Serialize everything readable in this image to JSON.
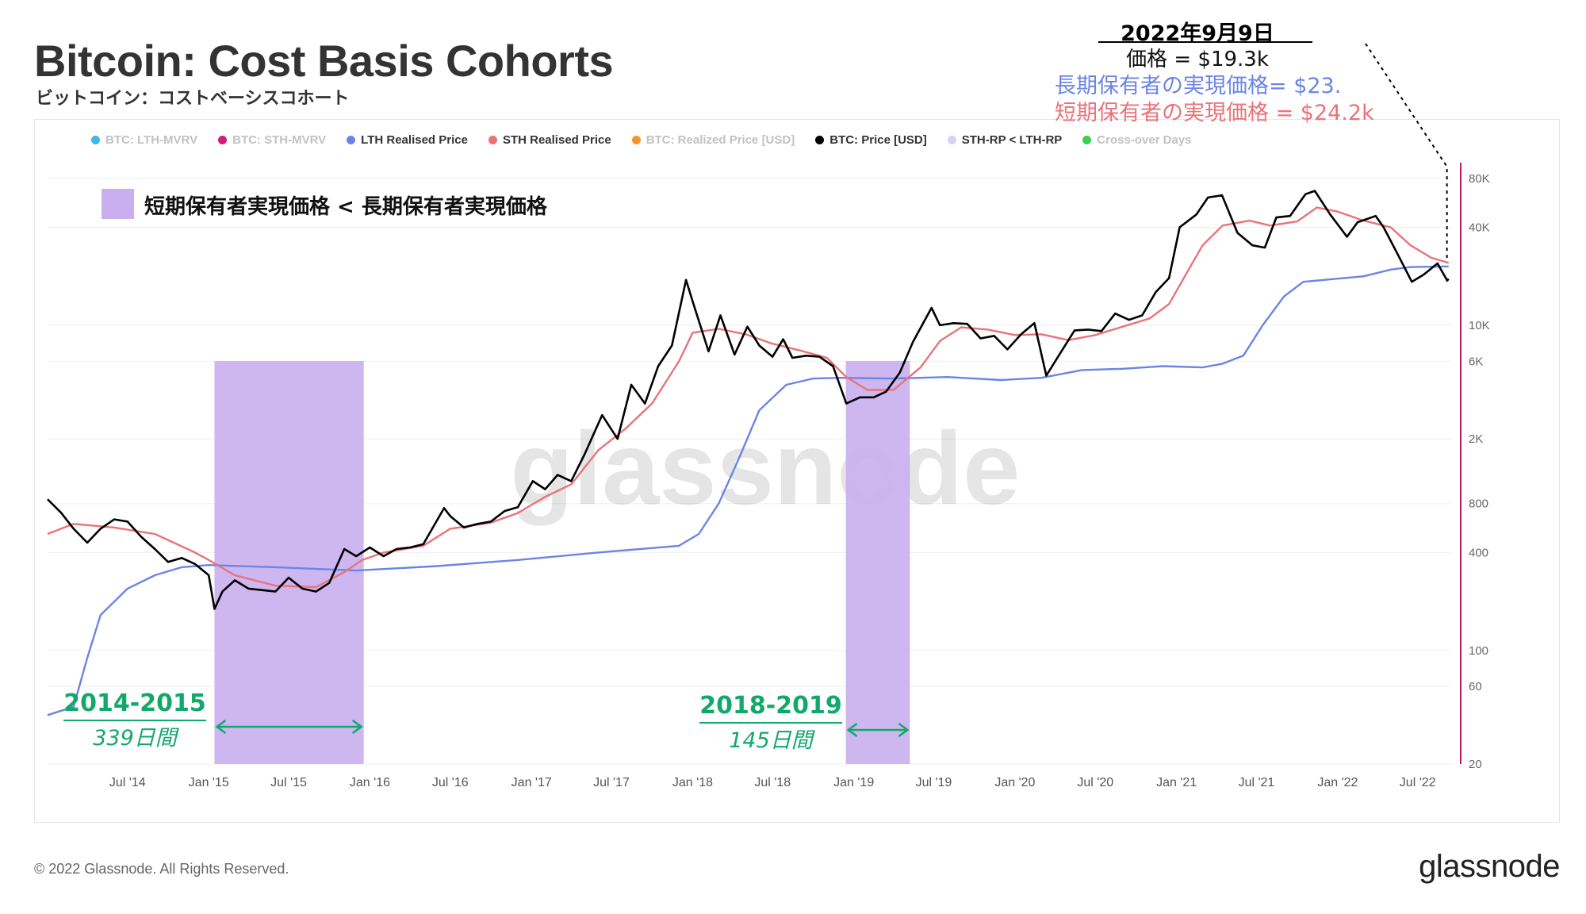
{
  "header": {
    "title": "Bitcoin: Cost Basis Cohorts",
    "subtitle": "ビットコイン：コストベーシスコホート"
  },
  "legend": [
    {
      "label": "BTC: LTH-MVRV",
      "color": "#3fb5e8",
      "active": false
    },
    {
      "label": "BTC: STH-MVRV",
      "color": "#d9197a",
      "active": false
    },
    {
      "label": "LTH Realised Price",
      "color": "#6b85e6",
      "active": true
    },
    {
      "label": "STH Realised Price",
      "color": "#e9737a",
      "active": true
    },
    {
      "label": "BTC: Realized Price [USD]",
      "color": "#f0962a",
      "active": false
    },
    {
      "label": "BTC: Price [USD]",
      "color": "#000000",
      "active": true
    },
    {
      "label": "STH-RP < LTH-RP",
      "color": "#dccff5",
      "active": true
    },
    {
      "label": "Cross-over Days",
      "color": "#3ccf4e",
      "active": false
    }
  ],
  "annotation": {
    "box_label": "短期保有者実現価格 < 長期保有者実現価格",
    "box_color": "#c9aef0"
  },
  "callout": {
    "date": "2022年9月9日",
    "price": "価格 = $19.3k",
    "lth": "長期保有者の実現価格= $23.",
    "sth": "短期保有者の実現価格 = $24.2k"
  },
  "watermark": "glassnode",
  "footer": {
    "copyright": "© 2022 Glassnode. All Rights Reserved.",
    "brand": "glassnode"
  },
  "chart_data": {
    "type": "line",
    "y_scale": "log",
    "y_range": [
      20,
      100000
    ],
    "y_ticks": [
      {
        "value": 20,
        "label": "20"
      },
      {
        "value": 60,
        "label": "60"
      },
      {
        "value": 100,
        "label": "100"
      },
      {
        "value": 400,
        "label": "400"
      },
      {
        "value": 800,
        "label": "800"
      },
      {
        "value": 2000,
        "label": "2K"
      },
      {
        "value": 6000,
        "label": "6K"
      },
      {
        "value": 10000,
        "label": "10K"
      },
      {
        "value": 40000,
        "label": "40K"
      },
      {
        "value": 80000,
        "label": "80K"
      }
    ],
    "x_range": [
      "2014-01-01",
      "2022-09-15"
    ],
    "x_ticks": [
      {
        "date": "2014-07-01",
        "label": "Jul '14"
      },
      {
        "date": "2015-01-01",
        "label": "Jan '15"
      },
      {
        "date": "2015-07-01",
        "label": "Jul '15"
      },
      {
        "date": "2016-01-01",
        "label": "Jan '16"
      },
      {
        "date": "2016-07-01",
        "label": "Jul '16"
      },
      {
        "date": "2017-01-01",
        "label": "Jan '17"
      },
      {
        "date": "2017-07-01",
        "label": "Jul '17"
      },
      {
        "date": "2018-01-01",
        "label": "Jan '18"
      },
      {
        "date": "2018-07-01",
        "label": "Jul '18"
      },
      {
        "date": "2019-01-01",
        "label": "Jan '19"
      },
      {
        "date": "2019-07-01",
        "label": "Jul '19"
      },
      {
        "date": "2020-01-01",
        "label": "Jan '20"
      },
      {
        "date": "2020-07-01",
        "label": "Jul '20"
      },
      {
        "date": "2021-01-01",
        "label": "Jan '21"
      },
      {
        "date": "2021-07-01",
        "label": "Jul '21"
      },
      {
        "date": "2022-01-01",
        "label": "Jan '22"
      },
      {
        "date": "2022-07-01",
        "label": "Jul '22"
      }
    ],
    "grid": true,
    "series": [
      {
        "name": "BTC: Price [USD]",
        "color": "#000000",
        "points": [
          [
            "2014-01-01",
            850
          ],
          [
            "2014-02-01",
            700
          ],
          [
            "2014-03-01",
            560
          ],
          [
            "2014-04-01",
            460
          ],
          [
            "2014-05-01",
            560
          ],
          [
            "2014-06-01",
            640
          ],
          [
            "2014-07-01",
            620
          ],
          [
            "2014-08-01",
            500
          ],
          [
            "2014-09-01",
            420
          ],
          [
            "2014-10-01",
            350
          ],
          [
            "2014-11-01",
            370
          ],
          [
            "2014-12-01",
            340
          ],
          [
            "2015-01-01",
            290
          ],
          [
            "2015-01-14",
            180
          ],
          [
            "2015-02-01",
            230
          ],
          [
            "2015-03-01",
            270
          ],
          [
            "2015-04-01",
            240
          ],
          [
            "2015-05-01",
            235
          ],
          [
            "2015-06-01",
            230
          ],
          [
            "2015-07-01",
            280
          ],
          [
            "2015-08-01",
            240
          ],
          [
            "2015-09-01",
            230
          ],
          [
            "2015-10-01",
            260
          ],
          [
            "2015-11-04",
            420
          ],
          [
            "2015-12-01",
            380
          ],
          [
            "2016-01-01",
            430
          ],
          [
            "2016-02-01",
            380
          ],
          [
            "2016-03-01",
            420
          ],
          [
            "2016-04-01",
            430
          ],
          [
            "2016-05-01",
            450
          ],
          [
            "2016-06-17",
            750
          ],
          [
            "2016-07-01",
            670
          ],
          [
            "2016-08-01",
            570
          ],
          [
            "2016-09-01",
            600
          ],
          [
            "2016-10-01",
            620
          ],
          [
            "2016-11-01",
            720
          ],
          [
            "2016-12-01",
            760
          ],
          [
            "2017-01-04",
            1100
          ],
          [
            "2017-02-01",
            980
          ],
          [
            "2017-03-01",
            1200
          ],
          [
            "2017-04-01",
            1100
          ],
          [
            "2017-05-01",
            1600
          ],
          [
            "2017-06-10",
            2800
          ],
          [
            "2017-07-15",
            2000
          ],
          [
            "2017-08-15",
            4300
          ],
          [
            "2017-09-15",
            3300
          ],
          [
            "2017-10-15",
            5600
          ],
          [
            "2017-11-15",
            7500
          ],
          [
            "2017-12-17",
            19000
          ],
          [
            "2018-01-01",
            14000
          ],
          [
            "2018-02-06",
            6900
          ],
          [
            "2018-03-05",
            11500
          ],
          [
            "2018-04-06",
            6600
          ],
          [
            "2018-05-05",
            9800
          ],
          [
            "2018-06-01",
            7500
          ],
          [
            "2018-07-01",
            6400
          ],
          [
            "2018-07-25",
            8200
          ],
          [
            "2018-08-15",
            6300
          ],
          [
            "2018-09-15",
            6500
          ],
          [
            "2018-10-15",
            6400
          ],
          [
            "2018-11-15",
            5600
          ],
          [
            "2018-12-15",
            3300
          ],
          [
            "2019-01-15",
            3600
          ],
          [
            "2019-02-15",
            3600
          ],
          [
            "2019-03-15",
            3900
          ],
          [
            "2019-04-15",
            5100
          ],
          [
            "2019-05-15",
            7900
          ],
          [
            "2019-06-26",
            12800
          ],
          [
            "2019-07-15",
            10000
          ],
          [
            "2019-08-15",
            10300
          ],
          [
            "2019-09-15",
            10200
          ],
          [
            "2019-10-15",
            8300
          ],
          [
            "2019-11-15",
            8600
          ],
          [
            "2019-12-15",
            7100
          ],
          [
            "2020-01-15",
            8800
          ],
          [
            "2020-02-14",
            10300
          ],
          [
            "2020-03-12",
            4900
          ],
          [
            "2020-04-15",
            6900
          ],
          [
            "2020-05-15",
            9300
          ],
          [
            "2020-06-15",
            9400
          ],
          [
            "2020-07-15",
            9200
          ],
          [
            "2020-08-15",
            11800
          ],
          [
            "2020-09-15",
            10800
          ],
          [
            "2020-10-15",
            11500
          ],
          [
            "2020-11-15",
            16000
          ],
          [
            "2020-12-15",
            19500
          ],
          [
            "2021-01-08",
            40000
          ],
          [
            "2021-02-15",
            48000
          ],
          [
            "2021-03-13",
            61000
          ],
          [
            "2021-04-14",
            63000
          ],
          [
            "2021-05-19",
            37000
          ],
          [
            "2021-06-22",
            31000
          ],
          [
            "2021-07-20",
            30000
          ],
          [
            "2021-08-15",
            46000
          ],
          [
            "2021-09-15",
            47000
          ],
          [
            "2021-10-20",
            64000
          ],
          [
            "2021-11-10",
            67000
          ],
          [
            "2021-12-15",
            48000
          ],
          [
            "2022-01-22",
            35000
          ],
          [
            "2022-02-15",
            43000
          ],
          [
            "2022-03-28",
            47000
          ],
          [
            "2022-04-15",
            40000
          ],
          [
            "2022-05-12",
            29000
          ],
          [
            "2022-06-18",
            18500
          ],
          [
            "2022-07-15",
            20500
          ],
          [
            "2022-08-15",
            24000
          ],
          [
            "2022-09-06",
            18800
          ],
          [
            "2022-09-09",
            19300
          ]
        ]
      },
      {
        "name": "STH Realised Price",
        "color": "#e9737a",
        "points": [
          [
            "2014-01-01",
            520
          ],
          [
            "2014-03-01",
            600
          ],
          [
            "2014-06-01",
            570
          ],
          [
            "2014-09-01",
            520
          ],
          [
            "2014-12-01",
            400
          ],
          [
            "2015-01-01",
            360
          ],
          [
            "2015-03-01",
            290
          ],
          [
            "2015-06-01",
            250
          ],
          [
            "2015-09-01",
            245
          ],
          [
            "2015-11-01",
            300
          ],
          [
            "2015-12-15",
            360
          ],
          [
            "2016-02-01",
            400
          ],
          [
            "2016-05-01",
            440
          ],
          [
            "2016-07-01",
            560
          ],
          [
            "2016-10-01",
            610
          ],
          [
            "2016-12-01",
            700
          ],
          [
            "2017-02-01",
            880
          ],
          [
            "2017-04-01",
            1050
          ],
          [
            "2017-06-01",
            1700
          ],
          [
            "2017-08-01",
            2300
          ],
          [
            "2017-10-01",
            3300
          ],
          [
            "2017-12-01",
            6000
          ],
          [
            "2018-01-01",
            9000
          ],
          [
            "2018-03-01",
            9500
          ],
          [
            "2018-05-01",
            8800
          ],
          [
            "2018-07-01",
            7700
          ],
          [
            "2018-09-01",
            7000
          ],
          [
            "2018-11-01",
            6300
          ],
          [
            "2018-12-15",
            4800
          ],
          [
            "2019-02-01",
            4000
          ],
          [
            "2019-04-01",
            4000
          ],
          [
            "2019-06-01",
            5500
          ],
          [
            "2019-07-15",
            8000
          ],
          [
            "2019-09-01",
            9700
          ],
          [
            "2019-11-01",
            9400
          ],
          [
            "2020-01-01",
            8700
          ],
          [
            "2020-03-01",
            8800
          ],
          [
            "2020-05-01",
            8100
          ],
          [
            "2020-07-01",
            8700
          ],
          [
            "2020-09-01",
            9800
          ],
          [
            "2020-11-01",
            11000
          ],
          [
            "2020-12-15",
            13500
          ],
          [
            "2021-01-15",
            19000
          ],
          [
            "2021-03-01",
            31000
          ],
          [
            "2021-04-15",
            41000
          ],
          [
            "2021-06-15",
            44000
          ],
          [
            "2021-08-01",
            41000
          ],
          [
            "2021-10-01",
            43500
          ],
          [
            "2021-11-15",
            53000
          ],
          [
            "2022-01-01",
            50000
          ],
          [
            "2022-03-01",
            44000
          ],
          [
            "2022-05-01",
            40000
          ],
          [
            "2022-06-15",
            31000
          ],
          [
            "2022-08-01",
            26000
          ],
          [
            "2022-09-09",
            24200
          ]
        ]
      },
      {
        "name": "LTH Realised Price",
        "color": "#6b85e6",
        "points": [
          [
            "2014-01-01",
            40
          ],
          [
            "2014-03-01",
            45
          ],
          [
            "2014-04-01",
            90
          ],
          [
            "2014-05-01",
            165
          ],
          [
            "2014-07-01",
            240
          ],
          [
            "2014-09-01",
            290
          ],
          [
            "2014-11-01",
            325
          ],
          [
            "2015-01-01",
            335
          ],
          [
            "2015-06-01",
            325
          ],
          [
            "2015-12-01",
            310
          ],
          [
            "2016-06-01",
            330
          ],
          [
            "2016-12-01",
            360
          ],
          [
            "2017-06-01",
            400
          ],
          [
            "2017-12-01",
            440
          ],
          [
            "2018-01-15",
            520
          ],
          [
            "2018-03-01",
            800
          ],
          [
            "2018-04-15",
            1500
          ],
          [
            "2018-06-01",
            3000
          ],
          [
            "2018-08-01",
            4300
          ],
          [
            "2018-10-01",
            4700
          ],
          [
            "2018-12-01",
            4750
          ],
          [
            "2019-04-01",
            4700
          ],
          [
            "2019-08-01",
            4800
          ],
          [
            "2019-12-01",
            4600
          ],
          [
            "2020-03-01",
            4750
          ],
          [
            "2020-06-01",
            5300
          ],
          [
            "2020-09-01",
            5400
          ],
          [
            "2020-12-01",
            5600
          ],
          [
            "2021-03-01",
            5500
          ],
          [
            "2021-04-15",
            5800
          ],
          [
            "2021-06-01",
            6500
          ],
          [
            "2021-07-15",
            10000
          ],
          [
            "2021-09-01",
            15000
          ],
          [
            "2021-10-15",
            18500
          ],
          [
            "2021-12-01",
            19000
          ],
          [
            "2022-03-01",
            20000
          ],
          [
            "2022-05-01",
            22000
          ],
          [
            "2022-06-15",
            22800
          ],
          [
            "2022-09-09",
            23000
          ]
        ]
      }
    ],
    "shaded_periods": [
      {
        "label": "STH-RP < LTH-RP",
        "start": "2015-01-14",
        "end": "2015-12-18",
        "color": "#c9aef0"
      },
      {
        "label": "STH-RP < LTH-RP",
        "start": "2018-12-14",
        "end": "2019-05-08",
        "color": "#c9aef0"
      }
    ],
    "period_labels": [
      {
        "range": "2014-2015",
        "duration": "339日間",
        "start": "2015-01-14",
        "end": "2015-12-18",
        "arrow_color": "#12a86b"
      },
      {
        "range": "2018-2019",
        "duration": "145日間",
        "start": "2018-12-14",
        "end": "2019-05-08",
        "arrow_color": "#12a86b"
      }
    ],
    "marker": {
      "date": "2022-09-09",
      "color": "#000000"
    },
    "right_axis_color": "#c5155f"
  }
}
